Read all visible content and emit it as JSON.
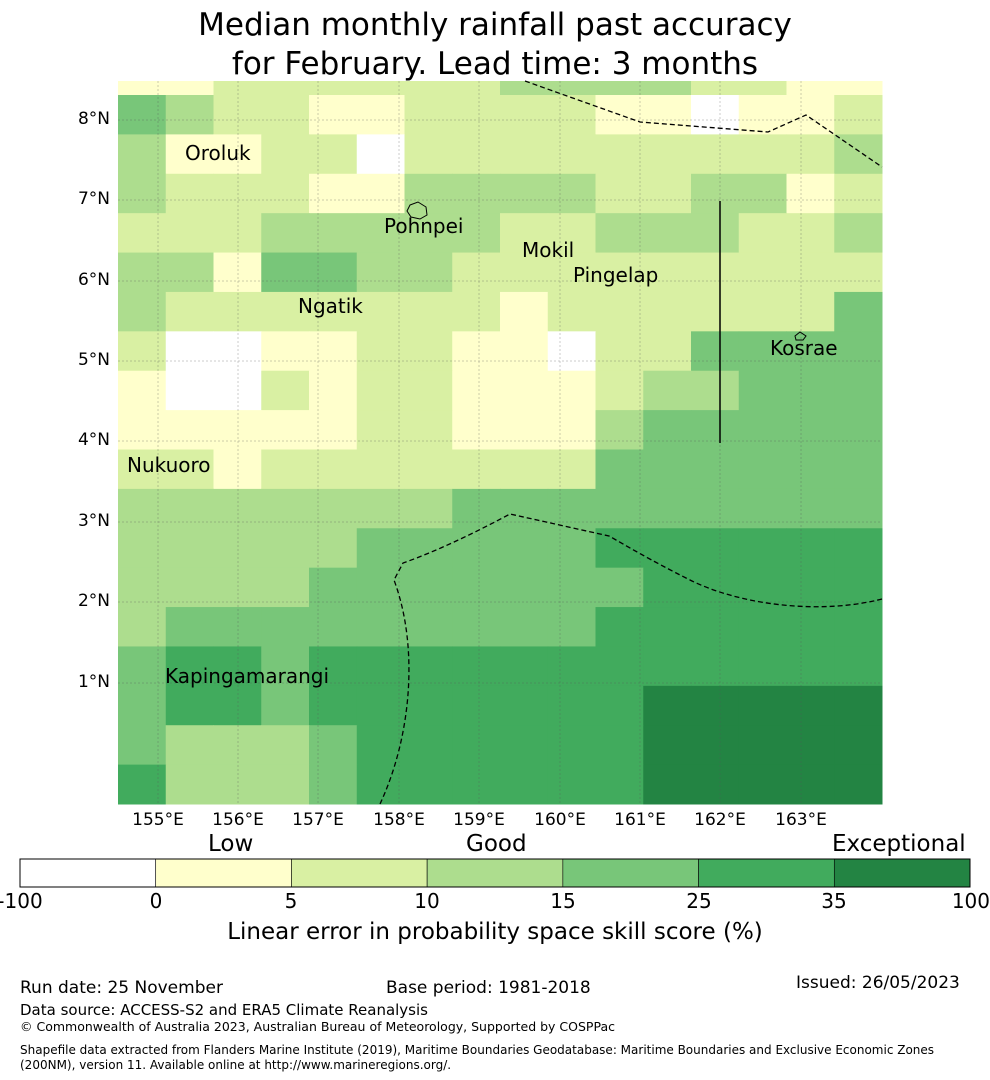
{
  "title": {
    "line1": "Median monthly rainfall past accuracy",
    "line2": "for February. Lead time: 3 months"
  },
  "map": {
    "lat_labels": [
      "8°N",
      "7°N",
      "6°N",
      "5°N",
      "4°N",
      "3°N",
      "2°N",
      "1°N"
    ],
    "lon_labels": [
      "155°E",
      "156°E",
      "157°E",
      "158°E",
      "159°E",
      "160°E",
      "161°E",
      "162°E",
      "163°E"
    ],
    "places": {
      "oroluk": "Oroluk",
      "pohnpei": "Pohnpei",
      "mokil": "Mokil",
      "pingelap": "Pingelap",
      "ngatik": "Ngatik",
      "kosrae": "Kosrae",
      "nukuoro": "Nukuoro",
      "kapingamarangi": "Kapingamarangi"
    },
    "grid_category_rows": [
      "1122222233332211",
      "4322112222110112",
      "3112202222222223",
      "3222113333223312",
      "2223333322333223",
      "3314433222222222",
      "3222222212222224",
      "2001122110224444",
      "1002122111233444",
      "1111122111344444",
      "2212222222444444",
      "3333333444444444",
      "3333344444555555",
      "3333444444455555",
      "3444444444555555",
      "4554555555555555",
      "4554555555566666",
      "4333455555566666",
      "5333455555566666"
    ]
  },
  "colorbar": {
    "categories": [
      "Low",
      "Good",
      "Exceptional"
    ],
    "ticks": [
      "-100",
      "0",
      "5",
      "10",
      "15",
      "25",
      "35",
      "100"
    ],
    "colors": [
      "#ffffff",
      "#ffffcc",
      "#d9f0a3",
      "#addd8e",
      "#78c679",
      "#41ab5d",
      "#238443"
    ],
    "label": "Linear error in probability space skill score (%)"
  },
  "footer": {
    "run_date": "Run date: 25 November",
    "base_period": "Base period: 1981-2018",
    "issued": "Issued: 26/05/2023",
    "data_source": "Data source: ACCESS-S2 and ERA5 Climate Reanalysis",
    "copyright": "© Commonwealth of Australia 2023, Australian Bureau of Meteorology, Supported by COSPPac",
    "shapefile_line1": "Shapefile data extracted from Flanders Marine Institute (2019), Maritime Boundaries Geodatabase: Maritime Boundaries and Exclusive Economic Zones",
    "shapefile_line2": "(200NM), version 11. Available online at http://www.marineregions.org/."
  }
}
